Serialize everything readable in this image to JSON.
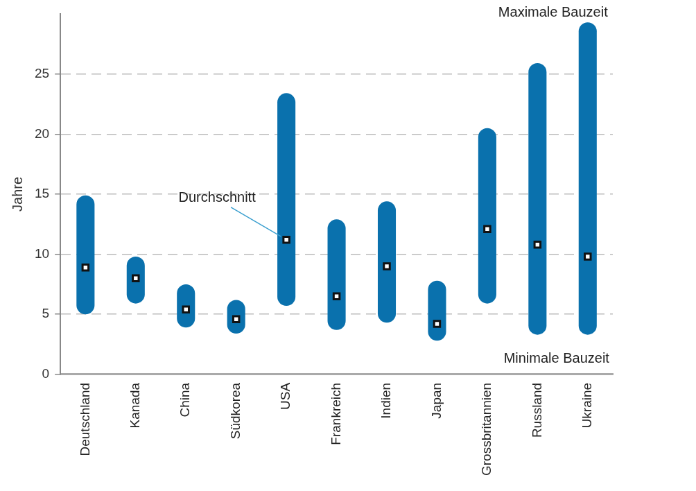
{
  "chart_data": {
    "type": "bar",
    "ylabel": "Jahre",
    "categories": [
      "Deutschland",
      "Kanada",
      "China",
      "Südkorea",
      "USA",
      "Frankreich",
      "Indien",
      "Japan",
      "Grossbritannien",
      "Russland",
      "Ukraine"
    ],
    "series": [
      {
        "color": "#0a71ad",
        "base": [
          5,
          5.9,
          3.9,
          3.4,
          5.7,
          3.7,
          4.3,
          2.8,
          5.9,
          3.3,
          3.3
        ],
        "values": [
          9.9,
          3.9,
          3.6,
          2.8,
          17.7,
          9.2,
          10.1,
          5.0,
          14.6,
          22.6,
          26.0
        ]
      },
      {
        "type": "scatter",
        "color": "#ffffff",
        "marker": "square",
        "x": [
          "Deutschland",
          "Kanada",
          "China",
          "Südkorea",
          "USA",
          "Frankreich",
          "Indien",
          "Japan",
          "Grossbritannien",
          "Russland",
          "Ukraine"
        ],
        "values": [
          8.9,
          8.0,
          5.4,
          4.6,
          11.2,
          6.5,
          9.0,
          4.2,
          12.1,
          10.8,
          9.8
        ]
      }
    ],
    "ylim": [
      0,
      30
    ],
    "yticks": [
      0,
      5,
      10,
      15,
      20,
      25
    ],
    "grid": "y",
    "line_style": "dashed",
    "legend": false,
    "annotations": [
      {
        "text": "Durchschnitt",
        "x": "USA",
        "y": 11.2
      },
      {
        "text": "Maximale Bauzeit",
        "x": "Ukraine",
        "y": 29.3
      },
      {
        "text": "Minimale Bauzeit",
        "x": "Ukraine",
        "y": 3.3
      }
    ]
  }
}
